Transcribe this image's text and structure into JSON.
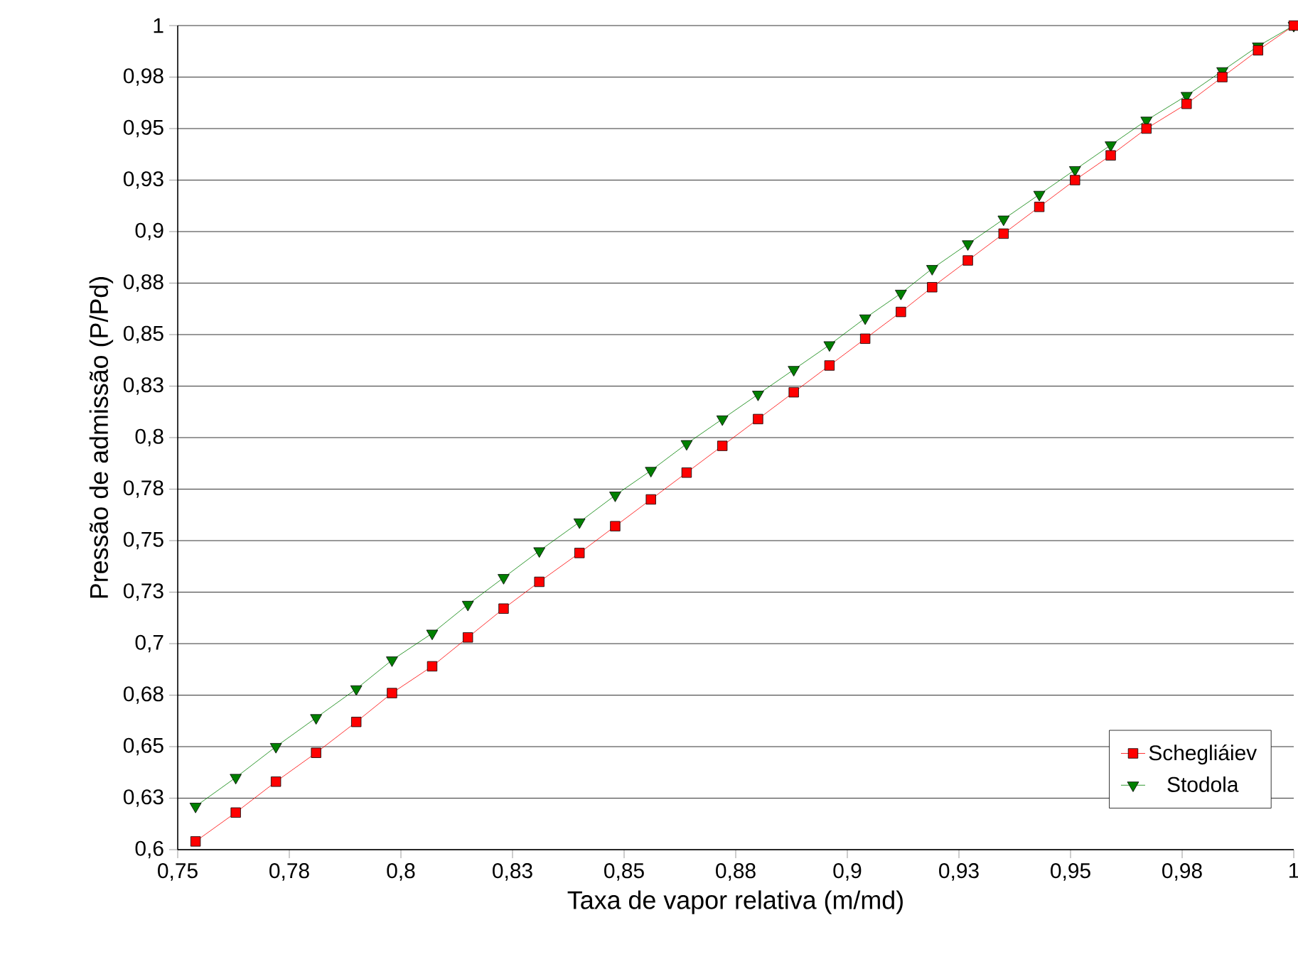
{
  "chart_data": {
    "type": "line",
    "xlabel": "Taxa de vapor relativa (m/md)",
    "ylabel": "Pressão de admissão (P/Pd)",
    "x": [
      0.754,
      0.763,
      0.772,
      0.781,
      0.79,
      0.798,
      0.807,
      0.815,
      0.823,
      0.831,
      0.84,
      0.848,
      0.856,
      0.864,
      0.872,
      0.88,
      0.888,
      0.896,
      0.904,
      0.912,
      0.919,
      0.927,
      0.935,
      0.943,
      0.951,
      0.959,
      0.967,
      0.976,
      0.984,
      0.992,
      1.0
    ],
    "series": [
      {
        "name": "Schegliáiev",
        "color": "#ff0000",
        "marker": "square",
        "values": [
          0.604,
          0.618,
          0.633,
          0.647,
          0.662,
          0.676,
          0.689,
          0.703,
          0.717,
          0.73,
          0.744,
          0.757,
          0.77,
          0.783,
          0.796,
          0.809,
          0.822,
          0.835,
          0.848,
          0.861,
          0.873,
          0.886,
          0.899,
          0.912,
          0.925,
          0.937,
          0.95,
          0.962,
          0.975,
          0.988,
          1.0
        ]
      },
      {
        "name": "Stodola",
        "color": "#008000",
        "marker": "triangle",
        "values": [
          0.621,
          0.635,
          0.65,
          0.664,
          0.678,
          0.692,
          0.705,
          0.719,
          0.732,
          0.745,
          0.759,
          0.772,
          0.784,
          0.797,
          0.809,
          0.821,
          0.833,
          0.845,
          0.858,
          0.87,
          0.882,
          0.894,
          0.906,
          0.918,
          0.93,
          0.942,
          0.954,
          0.966,
          0.978,
          0.99,
          1.0
        ]
      }
    ],
    "xlim": [
      0.75,
      1.0
    ],
    "ylim": [
      0.6,
      1.0
    ],
    "xticks": [
      {
        "value": 0.75,
        "label": "0,75"
      },
      {
        "value": 0.775,
        "label": "0,78"
      },
      {
        "value": 0.8,
        "label": "0,8"
      },
      {
        "value": 0.825,
        "label": "0,83"
      },
      {
        "value": 0.85,
        "label": "0,85"
      },
      {
        "value": 0.875,
        "label": "0,88"
      },
      {
        "value": 0.9,
        "label": "0,9"
      },
      {
        "value": 0.925,
        "label": "0,93"
      },
      {
        "value": 0.95,
        "label": "0,95"
      },
      {
        "value": 0.975,
        "label": "0,98"
      },
      {
        "value": 1.0,
        "label": "1"
      }
    ],
    "yticks": [
      {
        "value": 0.6,
        "label": "0,6"
      },
      {
        "value": 0.625,
        "label": "0,63"
      },
      {
        "value": 0.65,
        "label": "0,65"
      },
      {
        "value": 0.675,
        "label": "0,68"
      },
      {
        "value": 0.7,
        "label": "0,7"
      },
      {
        "value": 0.725,
        "label": "0,73"
      },
      {
        "value": 0.75,
        "label": "0,75"
      },
      {
        "value": 0.775,
        "label": "0,78"
      },
      {
        "value": 0.8,
        "label": "0,8"
      },
      {
        "value": 0.825,
        "label": "0,83"
      },
      {
        "value": 0.85,
        "label": "0,85"
      },
      {
        "value": 0.875,
        "label": "0,88"
      },
      {
        "value": 0.9,
        "label": "0,9"
      },
      {
        "value": 0.925,
        "label": "0,93"
      },
      {
        "value": 0.95,
        "label": "0,95"
      },
      {
        "value": 0.975,
        "label": "0,98"
      },
      {
        "value": 1.0,
        "label": "1"
      }
    ],
    "grid": "y",
    "legend": "bottom right",
    "line_style": "solid"
  }
}
